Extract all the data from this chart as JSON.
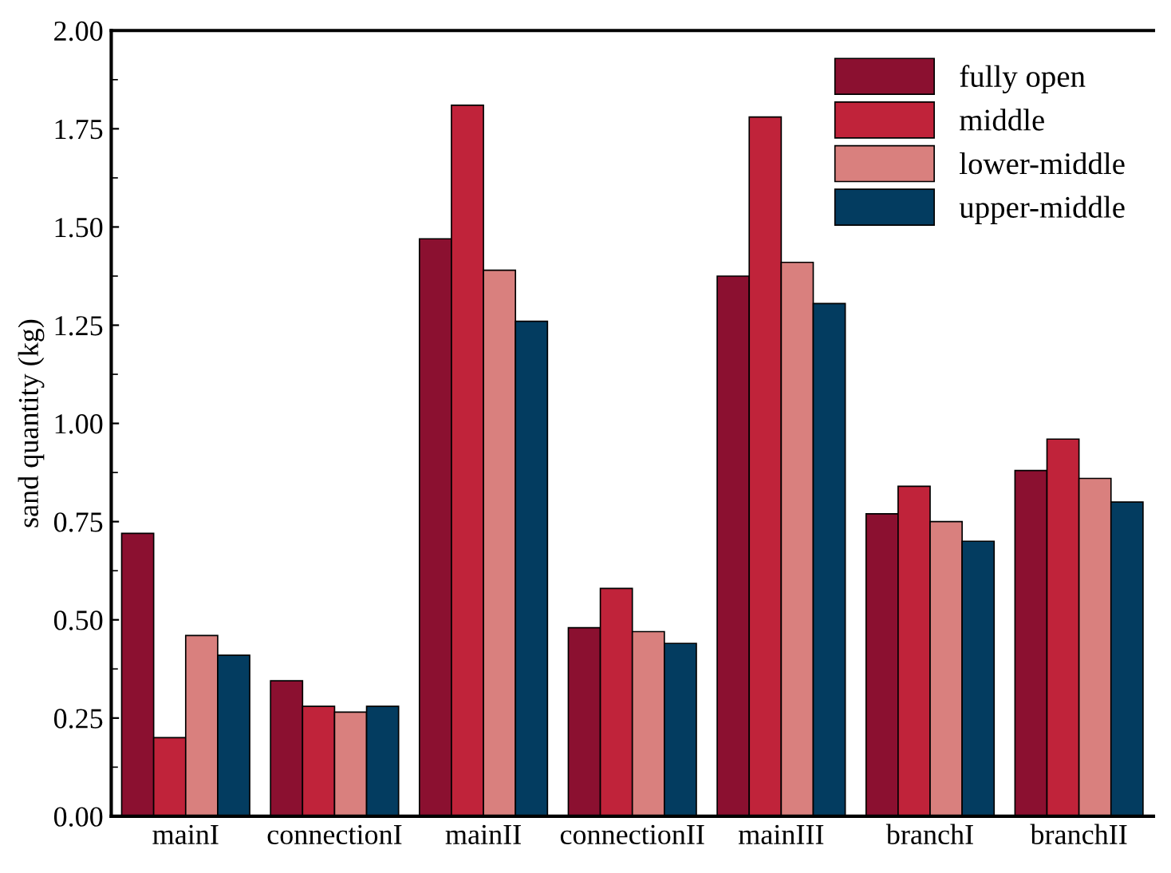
{
  "chart_data": {
    "type": "bar",
    "ylabel": "sand quantity (kg)",
    "categories": [
      "mainI",
      "connectionI",
      "mainII",
      "connectionII",
      "mainIII",
      "branchI",
      "branchII"
    ],
    "series": [
      {
        "name": "fully open",
        "color": "#8b1030",
        "values": [
          0.72,
          0.345,
          1.47,
          0.48,
          1.375,
          0.77,
          0.88
        ]
      },
      {
        "name": "middle",
        "color": "#c0233a",
        "values": [
          0.2,
          0.28,
          1.81,
          0.58,
          1.78,
          0.84,
          0.96
        ]
      },
      {
        "name": "lower-middle",
        "color": "#d9807e",
        "values": [
          0.46,
          0.265,
          1.39,
          0.47,
          1.41,
          0.75,
          0.86
        ]
      },
      {
        "name": "upper-middle",
        "color": "#033c60",
        "values": [
          0.41,
          0.28,
          1.26,
          0.44,
          1.305,
          0.7,
          0.8
        ]
      }
    ],
    "ylim": [
      0,
      2
    ],
    "yticks": [
      {
        "value": 0,
        "label": "0.00"
      },
      {
        "value": 0.25,
        "label": "0.25"
      },
      {
        "value": 0.5,
        "label": "0.50"
      },
      {
        "value": 0.75,
        "label": "0.75"
      },
      {
        "value": 1,
        "label": "1.00"
      },
      {
        "value": 1.25,
        "label": "1.25"
      },
      {
        "value": 1.5,
        "label": "1.50"
      },
      {
        "value": 1.75,
        "label": "1.75"
      },
      {
        "value": 2,
        "label": "2.00"
      }
    ],
    "grid": false,
    "legend": "top right"
  }
}
